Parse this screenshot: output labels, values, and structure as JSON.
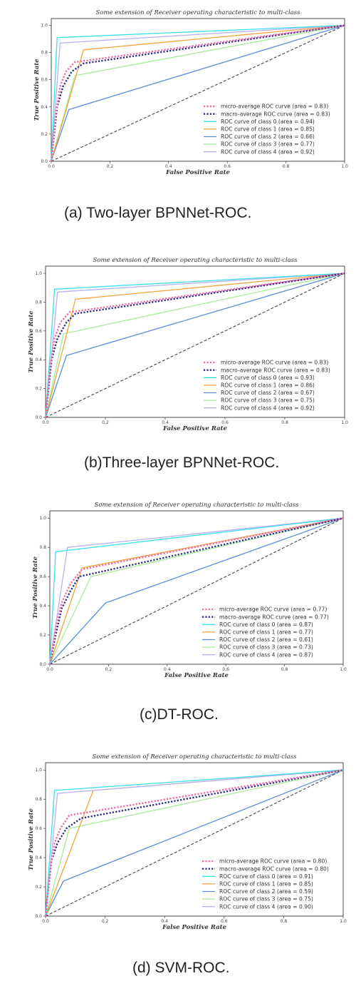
{
  "colors": {
    "micro": "#f06aa6",
    "macro": "#2d2d86",
    "class0": "#39e0ea",
    "class1": "#f2a33a",
    "class2": "#5b8ed8",
    "class3": "#a7ea9a",
    "class4": "#b7b2f2",
    "diagonal": "#444444"
  },
  "chart_data": [
    {
      "type": "line",
      "title": "Some extension of Receiver operating characteristic to multi-class",
      "xlabel": "False Positive Rate",
      "ylabel": "True Positive Rate",
      "xlim": [
        0,
        1
      ],
      "ylim": [
        0,
        1.05
      ],
      "xticks": [
        "0.0",
        "0.2",
        "0.4",
        "0.6",
        "0.8",
        "1.0"
      ],
      "yticks": [
        "0.0",
        "0.2",
        "0.4",
        "0.6",
        "0.8",
        "1.0"
      ],
      "legend_position": "lower-right",
      "caption": "(a)  Two-layer BPNNet-ROC.",
      "series": [
        {
          "name": "micro-average ROC curve (area = 0.83)",
          "style": "micro",
          "x": [
            0,
            0.015,
            0.03,
            0.05,
            0.08,
            1
          ],
          "y": [
            0,
            0.35,
            0.55,
            0.66,
            0.73,
            1
          ]
        },
        {
          "name": "macro-average ROC curve (area = 0.83)",
          "style": "macro",
          "x": [
            0,
            0.01,
            0.02,
            0.04,
            0.07,
            0.11,
            1
          ],
          "y": [
            0,
            0.2,
            0.4,
            0.55,
            0.66,
            0.72,
            1
          ]
        },
        {
          "name": "ROC curve of class 0 (area = 0.94)",
          "style": "class0",
          "x": [
            0,
            0.02,
            1
          ],
          "y": [
            0,
            0.91,
            1
          ]
        },
        {
          "name": "ROC curve of class 1 (area = 0.85)",
          "style": "class1",
          "x": [
            0,
            0.11,
            1
          ],
          "y": [
            0,
            0.82,
            1
          ]
        },
        {
          "name": "ROC curve of class 2 (area = 0.66)",
          "style": "class2",
          "x": [
            0,
            0.06,
            1
          ],
          "y": [
            0,
            0.38,
            1
          ]
        },
        {
          "name": "ROC curve of class 3 (area = 0.77)",
          "style": "class3",
          "x": [
            0,
            0.08,
            1
          ],
          "y": [
            0,
            0.63,
            1
          ]
        },
        {
          "name": "ROC curve of class 4 (area = 0.92)",
          "style": "class4",
          "x": [
            0,
            0.03,
            1
          ],
          "y": [
            0,
            0.87,
            1
          ]
        },
        {
          "name": "",
          "style": "diagonal",
          "x": [
            0,
            1
          ],
          "y": [
            0,
            1
          ]
        }
      ]
    },
    {
      "type": "line",
      "title": "Some extension of Receiver operating characteristic to multi-class",
      "xlabel": "False Positive Rate",
      "ylabel": "True Positive Rate",
      "xlim": [
        0,
        1
      ],
      "ylim": [
        0,
        1.05
      ],
      "xticks": [
        "0.0",
        "0.2",
        "0.4",
        "0.6",
        "0.8",
        "1.0"
      ],
      "yticks": [
        "0.0",
        "0.2",
        "0.4",
        "0.6",
        "0.8",
        "1.0"
      ],
      "legend_position": "lower-right",
      "caption": "(b)Three-layer BPNNet-ROC.",
      "series": [
        {
          "name": "micro-average ROC curve (area = 0.83)",
          "style": "micro",
          "x": [
            0,
            0.015,
            0.03,
            0.05,
            0.08,
            1
          ],
          "y": [
            0,
            0.35,
            0.55,
            0.66,
            0.73,
            1
          ]
        },
        {
          "name": "macro-average ROC curve (area = 0.83)",
          "style": "macro",
          "x": [
            0,
            0.01,
            0.02,
            0.04,
            0.07,
            0.1,
            1
          ],
          "y": [
            0,
            0.2,
            0.4,
            0.55,
            0.66,
            0.72,
            1
          ]
        },
        {
          "name": "ROC curve of class 0 (area = 0.93)",
          "style": "class0",
          "x": [
            0,
            0.03,
            1
          ],
          "y": [
            0,
            0.89,
            1
          ]
        },
        {
          "name": "ROC curve of class 1 (area = 0.86)",
          "style": "class1",
          "x": [
            0,
            0.1,
            1
          ],
          "y": [
            0,
            0.82,
            1
          ]
        },
        {
          "name": "ROC curve of class 2 (area = 0.67)",
          "style": "class2",
          "x": [
            0,
            0.07,
            1
          ],
          "y": [
            0,
            0.43,
            1
          ]
        },
        {
          "name": "ROC curve of class 3 (area = 0.75)",
          "style": "class3",
          "x": [
            0,
            0.06,
            1
          ],
          "y": [
            0,
            0.58,
            1
          ]
        },
        {
          "name": "ROC curve of class 4 (area = 0.92)",
          "style": "class4",
          "x": [
            0,
            0.04,
            1
          ],
          "y": [
            0,
            0.87,
            1
          ]
        },
        {
          "name": "",
          "style": "diagonal",
          "x": [
            0,
            1
          ],
          "y": [
            0,
            1
          ]
        }
      ]
    },
    {
      "type": "line",
      "title": "Some extension of Receiver operating characteristic to multi-class",
      "xlabel": "False Positive Rate",
      "ylabel": "True Positive Rate",
      "xlim": [
        0,
        1
      ],
      "ylim": [
        0,
        1.05
      ],
      "xticks": [
        "0.0",
        "0.2",
        "0.4",
        "0.6",
        "0.8",
        "1.0"
      ],
      "yticks": [
        "0.0",
        "0.2",
        "0.4",
        "0.6",
        "0.8",
        "1.0"
      ],
      "legend_position": "lower-right",
      "caption": "(c)DT-ROC.",
      "series": [
        {
          "name": "micro-average ROC curve (area = 0.77)",
          "style": "micro",
          "x": [
            0,
            0.02,
            0.04,
            0.07,
            0.11,
            1
          ],
          "y": [
            0,
            0.25,
            0.42,
            0.55,
            0.65,
            1
          ]
        },
        {
          "name": "macro-average ROC curve (area = 0.77)",
          "style": "macro",
          "x": [
            0,
            0.02,
            0.04,
            0.07,
            0.1,
            1
          ],
          "y": [
            0,
            0.2,
            0.38,
            0.5,
            0.6,
            1
          ]
        },
        {
          "name": "ROC curve of class 0 (area = 0.87)",
          "style": "class0",
          "x": [
            0,
            0.02,
            1
          ],
          "y": [
            0,
            0.77,
            1
          ]
        },
        {
          "name": "ROC curve of class 1 (area = 0.77)",
          "style": "class1",
          "x": [
            0,
            0.11,
            1
          ],
          "y": [
            0,
            0.66,
            1
          ]
        },
        {
          "name": "ROC curve of class 2 (area = 0.61)",
          "style": "class2",
          "x": [
            0,
            0.19,
            1
          ],
          "y": [
            0,
            0.42,
            1
          ]
        },
        {
          "name": "ROC curve of class 3 (area = 0.73)",
          "style": "class3",
          "x": [
            0,
            0.14,
            1
          ],
          "y": [
            0,
            0.6,
            1
          ]
        },
        {
          "name": "ROC curve of class 4 (area = 0.87)",
          "style": "class4",
          "x": [
            0,
            0.06,
            1
          ],
          "y": [
            0,
            0.8,
            1
          ]
        },
        {
          "name": "",
          "style": "diagonal",
          "x": [
            0,
            1
          ],
          "y": [
            0,
            1
          ]
        }
      ]
    },
    {
      "type": "line",
      "title": "Some extension of Receiver operating characteristic to multi-class",
      "xlabel": "False Positive Rate",
      "ylabel": "True Positive Rate",
      "xlim": [
        0,
        1
      ],
      "ylim": [
        0,
        1.05
      ],
      "xticks": [
        "0.0",
        "0.2",
        "0.4",
        "0.6",
        "0.8",
        "1.0"
      ],
      "yticks": [
        "0.0",
        "0.2",
        "0.4",
        "0.6",
        "0.8",
        "1.0"
      ],
      "legend_position": "lower-right",
      "caption": "(d) SVM-ROC.",
      "series": [
        {
          "name": "micro-average ROC curve (area = 0.80)",
          "style": "micro",
          "x": [
            0,
            0.015,
            0.03,
            0.05,
            0.08,
            1
          ],
          "y": [
            0,
            0.3,
            0.5,
            0.6,
            0.69,
            1
          ]
        },
        {
          "name": "macro-average ROC curve (area = 0.80)",
          "style": "macro",
          "x": [
            0,
            0.01,
            0.02,
            0.04,
            0.07,
            0.12,
            1
          ],
          "y": [
            0,
            0.2,
            0.38,
            0.5,
            0.6,
            0.67,
            1
          ]
        },
        {
          "name": "ROC curve of class 0 (area = 0.91)",
          "style": "class0",
          "x": [
            0,
            0.03,
            1
          ],
          "y": [
            0,
            0.86,
            1
          ]
        },
        {
          "name": "ROC curve of class 1 (area = 0.85)",
          "style": "class1",
          "x": [
            0,
            0.16,
            1
          ],
          "y": [
            0,
            0.86,
            1
          ]
        },
        {
          "name": "ROC curve of class 2 (area = 0.59)",
          "style": "class2",
          "x": [
            0,
            0.06,
            1
          ],
          "y": [
            0,
            0.24,
            1
          ]
        },
        {
          "name": "ROC curve of class 3 (area = 0.75)",
          "style": "class3",
          "x": [
            0,
            0.08,
            1
          ],
          "y": [
            0,
            0.6,
            1
          ]
        },
        {
          "name": "ROC curve of class 4 (area = 0.90)",
          "style": "class4",
          "x": [
            0,
            0.04,
            1
          ],
          "y": [
            0,
            0.84,
            1
          ]
        },
        {
          "name": "",
          "style": "diagonal",
          "x": [
            0,
            1
          ],
          "y": [
            0,
            1
          ]
        }
      ]
    }
  ]
}
